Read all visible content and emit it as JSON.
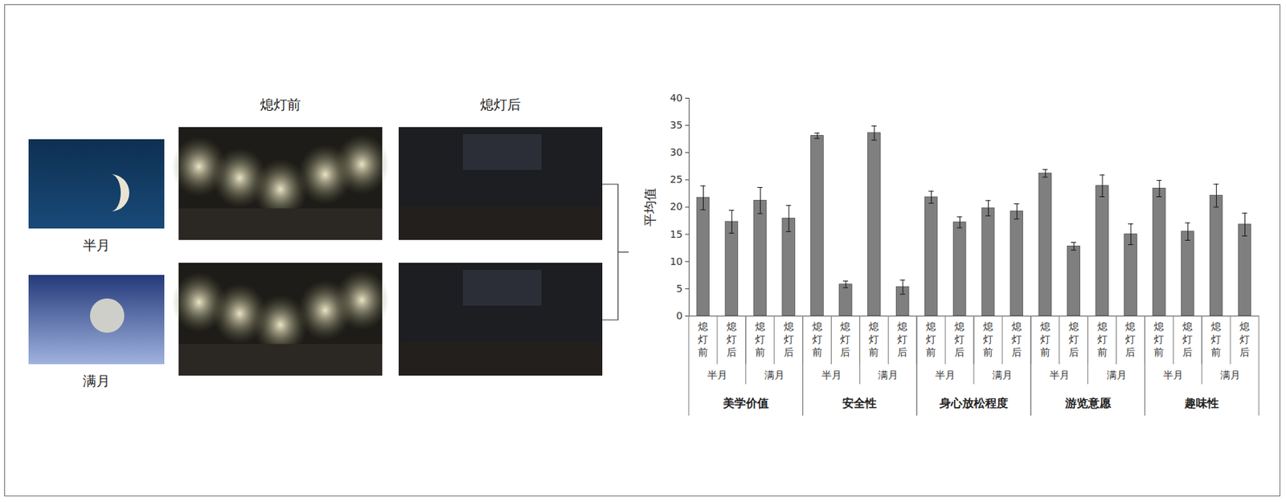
{
  "image_panel": {
    "column_titles": [
      "熄灯前",
      "熄灯后"
    ],
    "row_labels": [
      "半月",
      "满月"
    ]
  },
  "chart_data": {
    "type": "bar",
    "ylabel": "平均值",
    "ylim": [
      0,
      40
    ],
    "yticks": [
      0,
      5,
      10,
      15,
      20,
      25,
      30,
      35,
      40
    ],
    "grid": false,
    "color": "#7f7f7f",
    "groups": [
      {
        "name": "美学价值",
        "subgroups": [
          {
            "name": "半月",
            "categories": [
              "熄灯前",
              "熄灯后"
            ],
            "values": [
              21.7,
              17.3
            ],
            "errors": [
              2.2,
              2.1
            ]
          },
          {
            "name": "满月",
            "categories": [
              "熄灯前",
              "熄灯后"
            ],
            "values": [
              21.2,
              17.9
            ],
            "errors": [
              2.4,
              2.4
            ]
          }
        ]
      },
      {
        "name": "安全性",
        "subgroups": [
          {
            "name": "半月",
            "categories": [
              "熄灯前",
              "熄灯后"
            ],
            "values": [
              33.1,
              5.8
            ],
            "errors": [
              0.5,
              0.6
            ]
          },
          {
            "name": "满月",
            "categories": [
              "熄灯前",
              "熄灯后"
            ],
            "values": [
              33.6,
              5.3
            ],
            "errors": [
              1.3,
              1.3
            ]
          }
        ]
      },
      {
        "name": "身心放松程度",
        "subgroups": [
          {
            "name": "半月",
            "categories": [
              "熄灯前",
              "熄灯后"
            ],
            "values": [
              21.8,
              17.2
            ],
            "errors": [
              1.1,
              1.0
            ]
          },
          {
            "name": "满月",
            "categories": [
              "熄灯前",
              "熄灯后"
            ],
            "values": [
              19.8,
              19.2
            ],
            "errors": [
              1.4,
              1.4
            ]
          }
        ]
      },
      {
        "name": "游览意愿",
        "subgroups": [
          {
            "name": "半月",
            "categories": [
              "熄灯前",
              "熄灯后"
            ],
            "values": [
              26.2,
              12.8
            ],
            "errors": [
              0.7,
              0.7
            ]
          },
          {
            "name": "满月",
            "categories": [
              "熄灯前",
              "熄灯后"
            ],
            "values": [
              23.9,
              15.0
            ],
            "errors": [
              2.0,
              1.9
            ]
          }
        ]
      },
      {
        "name": "趣味性",
        "subgroups": [
          {
            "name": "半月",
            "categories": [
              "熄灯前",
              "熄灯后"
            ],
            "values": [
              23.4,
              15.5
            ],
            "errors": [
              1.5,
              1.6
            ]
          },
          {
            "name": "满月",
            "categories": [
              "熄灯前",
              "熄灯后"
            ],
            "values": [
              22.1,
              16.8
            ],
            "errors": [
              2.1,
              2.1
            ]
          }
        ]
      }
    ]
  }
}
